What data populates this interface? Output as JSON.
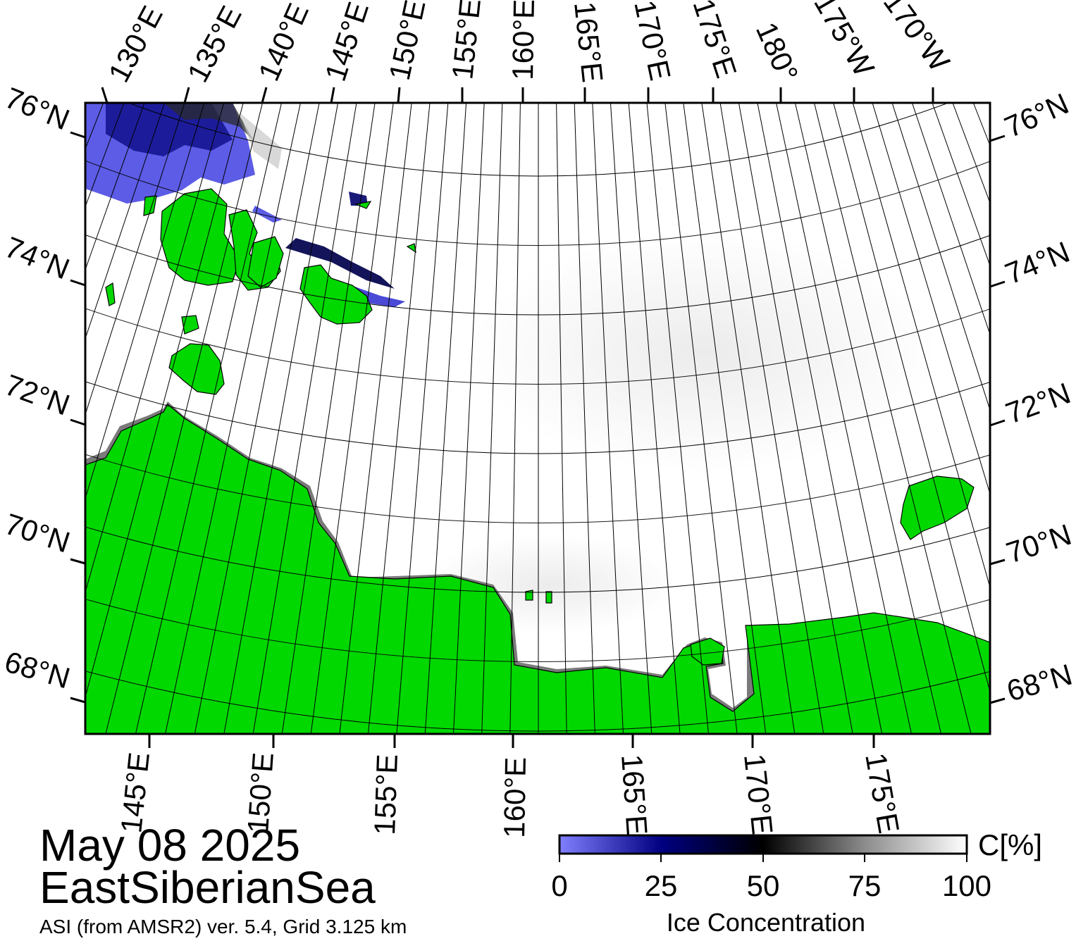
{
  "map": {
    "date": "May 08 2025",
    "region": "EastSiberianSea",
    "product": "ASI (from AMSR2) ver. 5.4,  Grid 3.125 km",
    "top_lon_labels": [
      "130°E",
      "135°E",
      "140°E",
      "145°E",
      "150°E",
      "155°E",
      "160°E",
      "165°E",
      "170°E",
      "175°E",
      "180°",
      "175°W",
      "170°W"
    ],
    "bottom_lon_labels": [
      "145°E",
      "150°E",
      "155°E",
      "160°E",
      "165°E",
      "170°E",
      "175°E"
    ],
    "left_lat_labels": [
      "76°N",
      "74°N",
      "72°N",
      "70°N",
      "68°N"
    ],
    "right_lat_labels": [
      "76°N",
      "74°N",
      "72°N",
      "70°N",
      "68°N"
    ],
    "colors": {
      "land": "#00d800",
      "open_water": "#ffffff",
      "low_ice": "#8080ff",
      "mid_ice": "#000060",
      "full_ice": "#ffffff",
      "shelf": "#7a7a7a"
    }
  },
  "colorbar": {
    "title": "Ice Concentration",
    "unit": "C[%]",
    "ticks": [
      "0",
      "25",
      "50",
      "75",
      "100"
    ],
    "range": [
      0,
      100
    ]
  }
}
